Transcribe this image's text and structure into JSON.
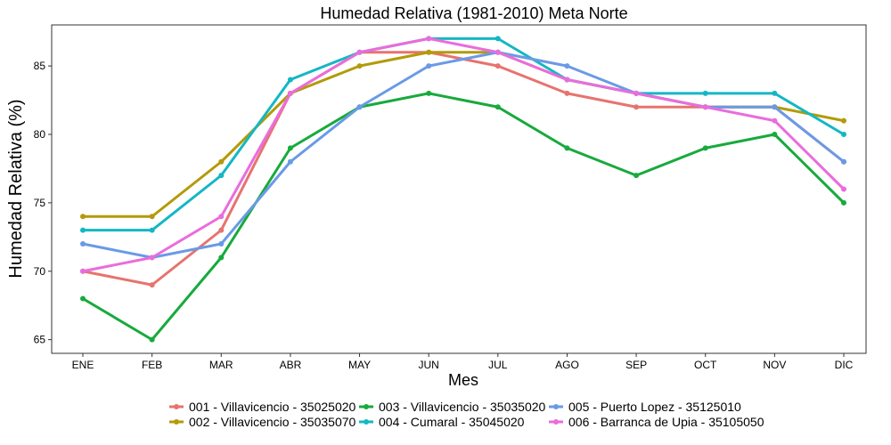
{
  "chart_data": {
    "type": "line",
    "title": "Humedad Relativa (1981-2010)  Meta Norte",
    "xlabel": "Mes",
    "ylabel": "Humedad Relativa  (%)",
    "categories": [
      "ENE",
      "FEB",
      "MAR",
      "ABR",
      "MAY",
      "JUN",
      "JUL",
      "AGO",
      "SEP",
      "OCT",
      "NOV",
      "DIC"
    ],
    "ylim": [
      64,
      88
    ],
    "yticks": [
      65,
      70,
      75,
      80,
      85
    ],
    "grid": false,
    "legend_position": "bottom",
    "series": [
      {
        "name": "001 - Villavicencio - 35025020",
        "color": "#E7736E",
        "values": [
          70,
          69,
          73,
          83,
          86,
          86,
          85,
          83,
          82,
          82,
          82,
          78
        ]
      },
      {
        "name": "002 - Villavicencio - 35035070",
        "color": "#B39A09",
        "values": [
          74,
          74,
          78,
          83,
          85,
          86,
          86,
          84,
          83,
          82,
          82,
          81
        ]
      },
      {
        "name": "003 - Villavicencio - 35035020",
        "color": "#17AA3C",
        "values": [
          68,
          65,
          71,
          79,
          82,
          83,
          82,
          79,
          77,
          79,
          80,
          75
        ]
      },
      {
        "name": "004 - Cumaral - 35045020",
        "color": "#14B7C4",
        "values": [
          73,
          73,
          77,
          84,
          86,
          87,
          87,
          84,
          83,
          83,
          83,
          80
        ]
      },
      {
        "name": "005 - Puerto Lopez - 35125010",
        "color": "#6A9AE6",
        "values": [
          72,
          71,
          72,
          78,
          82,
          85,
          86,
          85,
          83,
          82,
          82,
          78
        ]
      },
      {
        "name": "006 - Barranca de Upia - 35105050",
        "color": "#EA6CDD",
        "values": [
          70,
          71,
          74,
          83,
          86,
          87,
          86,
          84,
          83,
          82,
          81,
          76
        ]
      }
    ]
  }
}
